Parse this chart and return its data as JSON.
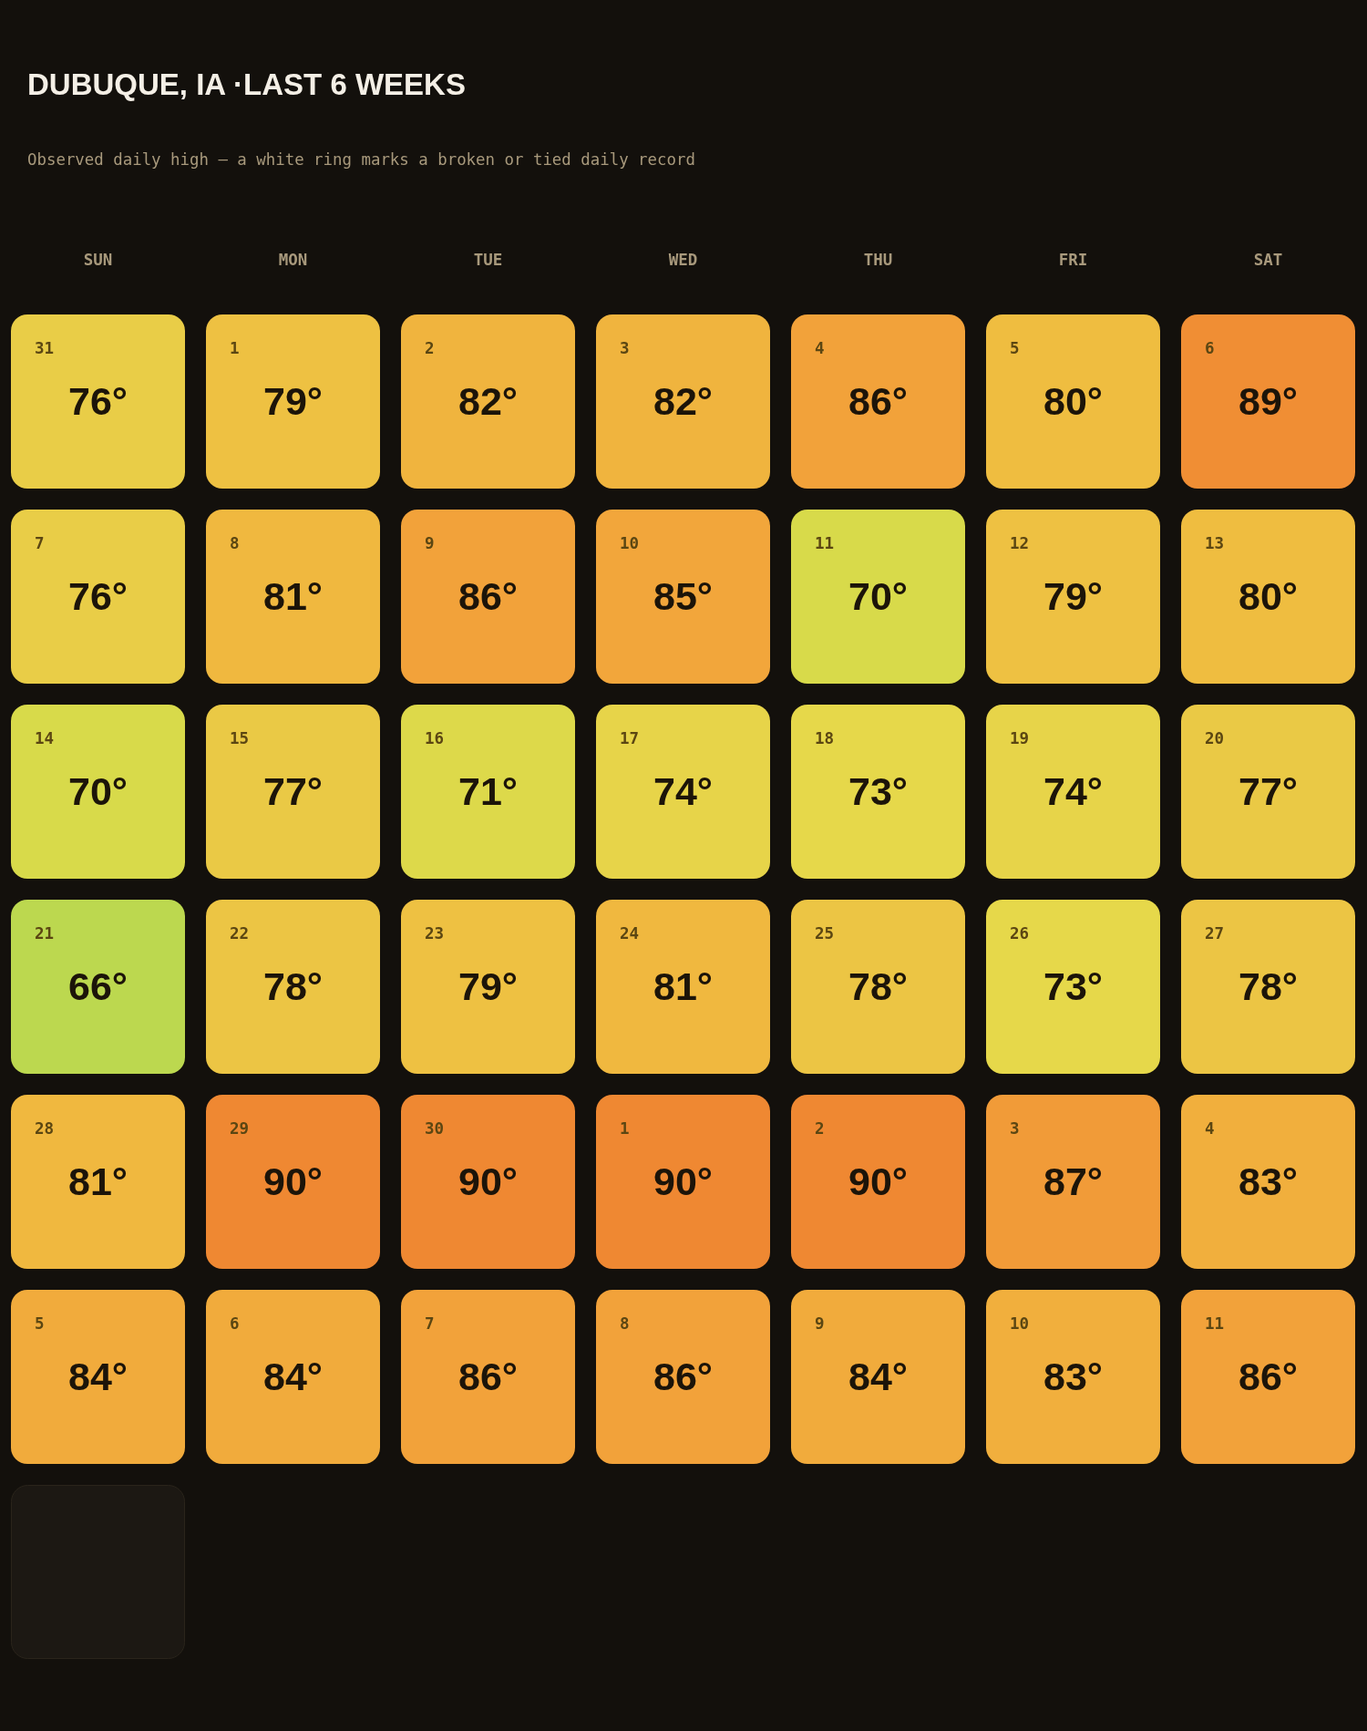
{
  "chart_data": {
    "type": "heatmap",
    "title": "DUBUQUE, IA ·LAST 6 WEEKS",
    "subtitle": "Observed daily high — a white ring marks a broken or tied daily record",
    "categories": [
      "SUN",
      "MON",
      "TUE",
      "WED",
      "THU",
      "FRI",
      "SAT"
    ],
    "y_categories": [
      null,
      null,
      null,
      null,
      null,
      null
    ],
    "cells": [
      [
        76,
        79,
        82,
        82,
        86,
        80,
        89
      ],
      [
        76,
        81,
        86,
        85,
        70,
        79,
        80
      ],
      [
        70,
        77,
        71,
        74,
        73,
        74,
        77
      ],
      [
        66,
        78,
        79,
        81,
        78,
        73,
        78
      ],
      [
        81,
        90,
        90,
        90,
        90,
        87,
        83
      ],
      [
        84,
        84,
        86,
        86,
        84,
        83,
        86
      ]
    ],
    "cell_labels": [
      [
        "76°",
        "79°",
        "82°",
        "82°",
        "86°",
        "80°",
        "89°"
      ],
      [
        "76°",
        "81°",
        "86°",
        "85°",
        "70°",
        "79°",
        "80°"
      ],
      [
        "70°",
        "77°",
        "71°",
        "74°",
        "73°",
        "74°",
        "77°"
      ],
      [
        "66°",
        "78°",
        "79°",
        "81°",
        "78°",
        "73°",
        "78°"
      ],
      [
        "81°",
        "90°",
        "90°",
        "90°",
        "90°",
        "87°",
        "83°"
      ],
      [
        "84°",
        "84°",
        "86°",
        "86°",
        "84°",
        "83°",
        "86°"
      ]
    ],
    "annotations": [
      "31",
      "1",
      "2",
      "3",
      "4",
      "5",
      "6",
      "7",
      "8",
      "9",
      "10",
      "11",
      "12",
      "13",
      "14",
      "15",
      "16",
      "17",
      "18",
      "19",
      "20",
      "21",
      "22",
      "23",
      "24",
      "25",
      "26",
      "27",
      "28",
      "29",
      "30",
      "1",
      "2",
      "3",
      "4",
      "5",
      "6",
      "7",
      "8",
      "9",
      "10",
      "11"
    ]
  }
}
